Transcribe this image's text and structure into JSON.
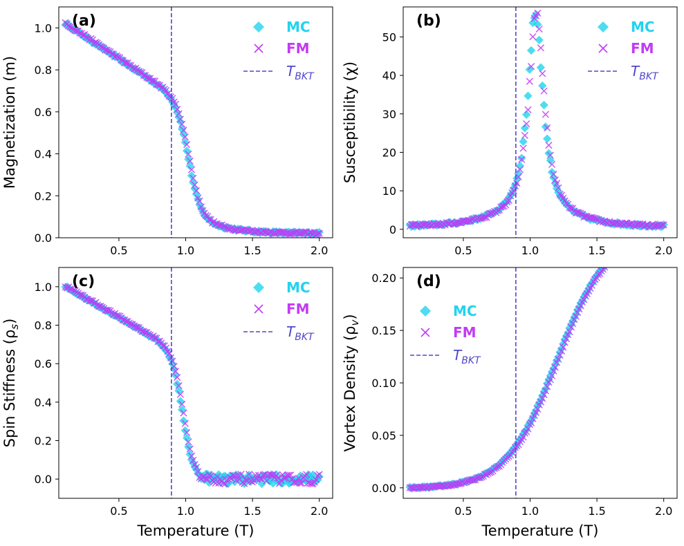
{
  "colors": {
    "mc": "#22d3ee",
    "fm": "#c13bf5",
    "tbkt": "#5046c8"
  },
  "chart_data": [
    {
      "type": "scatter",
      "panel_label": "(a)",
      "xlabel": "",
      "ylabel": "Magnetization (m)",
      "xlim": [
        0.05,
        2.1
      ],
      "ylim": [
        0.0,
        1.1
      ],
      "xticks": [
        "0.5",
        "1.0",
        "1.5",
        "2.0"
      ],
      "yticks": [
        "0.0",
        "0.2",
        "0.4",
        "0.6",
        "0.8",
        "1.0"
      ],
      "vline_x": 0.893,
      "legend": {
        "position": "top-right",
        "mc": "MC",
        "fm": "FM",
        "tbkt": "T",
        "tbkt_sub": "BKT"
      },
      "curve": "magnetization"
    },
    {
      "type": "scatter",
      "panel_label": "(b)",
      "xlabel": "",
      "ylabel": "Susceptibility (χ)",
      "xlim": [
        0.05,
        2.1
      ],
      "ylim": [
        -2.2,
        57.8
      ],
      "xticks": [
        "0.5",
        "1.0",
        "1.5",
        "2.0"
      ],
      "yticks": [
        "0",
        "10",
        "20",
        "30",
        "40",
        "50"
      ],
      "vline_x": 0.893,
      "legend": {
        "position": "top-right",
        "mc": "MC",
        "fm": "FM",
        "tbkt": "T",
        "tbkt_sub": "BKT"
      },
      "curve": "susceptibility"
    },
    {
      "type": "scatter",
      "panel_label": "(c)",
      "xlabel": "Temperature (T)",
      "ylabel": "Spin Stiffness (ρ",
      "ylabel_sub": "s",
      "ylabel_end": ")",
      "xlim": [
        0.05,
        2.1
      ],
      "ylim": [
        -0.1,
        1.1
      ],
      "xticks": [
        "0.5",
        "1.0",
        "1.5",
        "2.0"
      ],
      "yticks": [
        "0.0",
        "0.2",
        "0.4",
        "0.6",
        "0.8",
        "1.0"
      ],
      "vline_x": 0.893,
      "legend": {
        "position": "top-right",
        "mc": "MC",
        "fm": "FM",
        "tbkt": "T",
        "tbkt_sub": "BKT"
      },
      "curve": "stiffness"
    },
    {
      "type": "scatter",
      "panel_label": "(d)",
      "xlabel": "Temperature (T)",
      "ylabel": "Vortex Density (ρ",
      "ylabel_sub": "v",
      "ylabel_end": ")",
      "xlim": [
        0.05,
        2.1
      ],
      "ylim": [
        -0.01,
        0.21
      ],
      "xticks": [
        "0.5",
        "1.0",
        "1.5",
        "2.0"
      ],
      "yticks": [
        "0.00",
        "0.05",
        "0.10",
        "0.15",
        "0.20"
      ],
      "vline_x": 0.893,
      "legend": {
        "position": "upper-left",
        "mc": "MC",
        "fm": "FM",
        "tbkt": "T",
        "tbkt_sub": "BKT"
      },
      "curve": "vortex"
    }
  ]
}
